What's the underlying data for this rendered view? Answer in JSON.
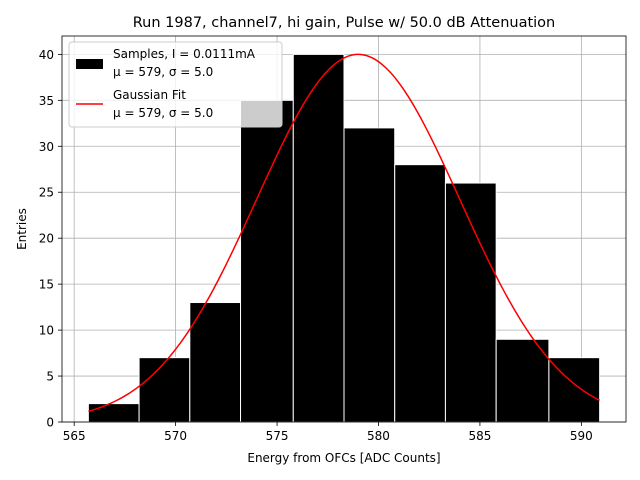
{
  "chart_data": {
    "type": "bar",
    "title": "Run 1987, channel7, hi gain, Pulse w/ 50.0 dB Attenuation",
    "xlabel": "Energy from OFCs [ADC Counts]",
    "ylabel": "Entries",
    "xlim": [
      564.4,
      592.2
    ],
    "ylim": [
      0,
      42
    ],
    "grid": true,
    "x_ticks": [
      565,
      570,
      575,
      580,
      585,
      590
    ],
    "y_ticks": [
      0,
      5,
      10,
      15,
      20,
      25,
      30,
      35,
      40
    ],
    "bin_edges": [
      565.7,
      568.2,
      570.7,
      573.2,
      575.8,
      578.3,
      580.8,
      583.3,
      585.8,
      588.4,
      590.9
    ],
    "counts": [
      2,
      7,
      13,
      35,
      40,
      32,
      28,
      26,
      9,
      7
    ],
    "fit": {
      "mu": 579.0,
      "sigma": 5.0,
      "amplitude": 40.0
    },
    "legend": {
      "location": "upper-left",
      "entries": [
        {
          "line1": "Samples, I = 0.0111mA",
          "line2": "μ = 579, σ = 5.0",
          "color": "#000000",
          "kind": "patch"
        },
        {
          "line1": "Gaussian Fit",
          "line2": "μ = 579, σ = 5.0",
          "color": "#ff0000",
          "kind": "line"
        }
      ]
    },
    "colors": {
      "bars": "#000000",
      "bar_edge": "#ffffff",
      "fit": "#ff0000",
      "grid": "#b0b0b0"
    }
  }
}
